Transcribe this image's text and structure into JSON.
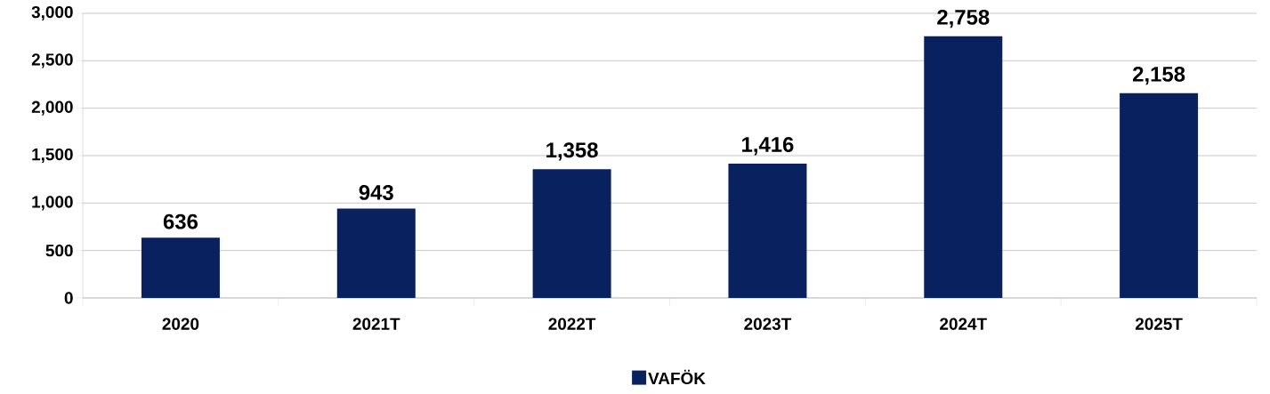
{
  "chart_data": {
    "type": "bar",
    "categories": [
      "2020",
      "2021T",
      "2022T",
      "2023T",
      "2024T",
      "2025T"
    ],
    "series": [
      {
        "name": "VAFÖK",
        "color": "#0a2160",
        "values": [
          636,
          943,
          1358,
          1416,
          2758,
          2158
        ]
      }
    ],
    "value_labels": [
      "636",
      "943",
      "1,358",
      "1,416",
      "2,758",
      "2,158"
    ],
    "ylim": [
      0,
      3000
    ],
    "yticks": [
      0,
      500,
      {
        "value": 1000,
        "label": "1,000"
      },
      {
        "value": 1500,
        "label": "1,500"
      },
      {
        "value": 2000,
        "label": "2,000"
      },
      {
        "value": 2500,
        "label": "2,500"
      },
      {
        "value": 3000,
        "label": "3,000"
      }
    ],
    "grid": "y",
    "legend": "bottom"
  }
}
